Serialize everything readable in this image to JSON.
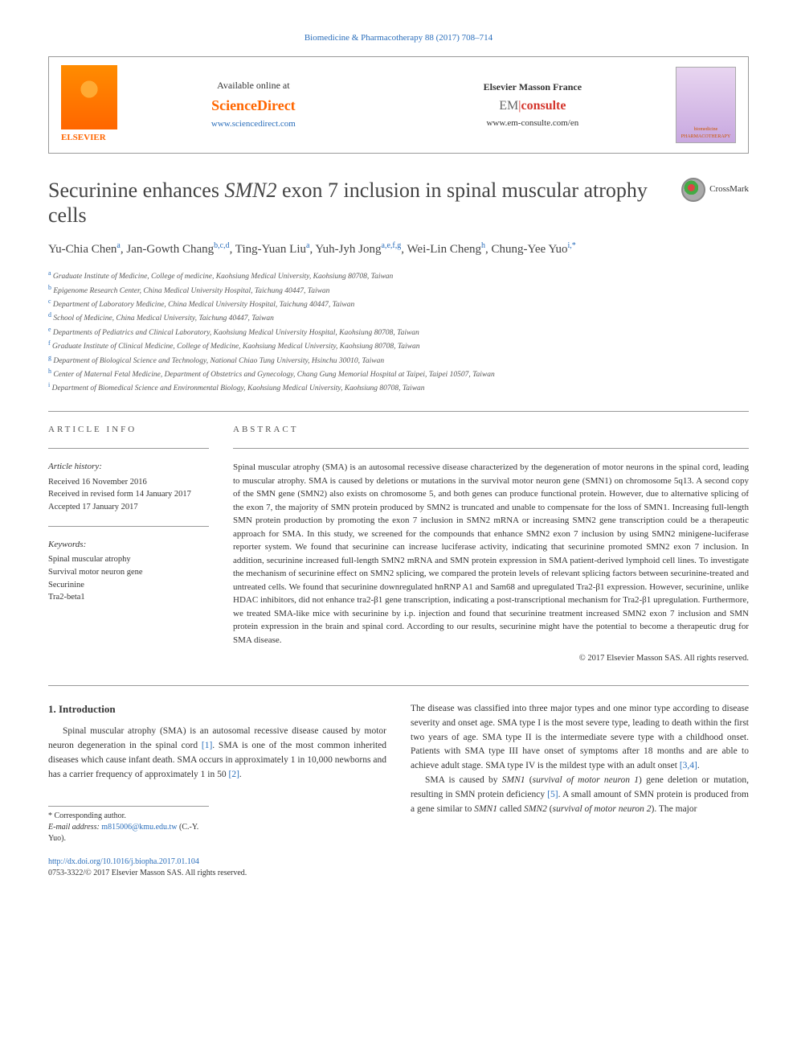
{
  "citation": "Biomedicine & Pharmacotherapy 88 (2017) 708–714",
  "header": {
    "availableText": "Available online at",
    "sdLogo": "ScienceDirect",
    "sdUrl": "www.sciencedirect.com",
    "emTitle": "Elsevier Masson France",
    "emLogoEm": "EM",
    "emLogoConsulte": "consulte",
    "emUrl": "www.em-consulte.com/en",
    "elsevierText": "ELSEVIER",
    "journalCoverTitle": "biomedicine PHARMACOTHERAPY"
  },
  "crossmark": "CrossMark",
  "title": "Securinine enhances SMN2 exon 7 inclusion in spinal muscular atrophy cells",
  "authorsHtml": "Yu-Chia Chen<sup>a</sup>, Jan-Gowth Chang<sup>b,c,d</sup>, Ting-Yuan Liu<sup>a</sup>, Yuh-Jyh Jong<sup>a,e,f,g</sup>, Wei-Lin Cheng<sup>h</sup>, Chung-Yee Yuo<sup>i,*</sup>",
  "affiliations": [
    {
      "sup": "a",
      "text": "Graduate Institute of Medicine, College of medicine, Kaohsiung Medical University, Kaohsiung 80708, Taiwan"
    },
    {
      "sup": "b",
      "text": "Epigenome Research Center, China Medical University Hospital, Taichung 40447, Taiwan"
    },
    {
      "sup": "c",
      "text": "Department of Laboratory Medicine, China Medical University Hospital, Taichung 40447, Taiwan"
    },
    {
      "sup": "d",
      "text": "School of Medicine, China Medical University, Taichung 40447, Taiwan"
    },
    {
      "sup": "e",
      "text": "Departments of Pediatrics and Clinical Laboratory, Kaohsiung Medical University Hospital, Kaohsiung 80708, Taiwan"
    },
    {
      "sup": "f",
      "text": "Graduate Institute of Clinical Medicine, College of Medicine, Kaohsiung Medical University, Kaohsiung 80708, Taiwan"
    },
    {
      "sup": "g",
      "text": "Department of Biological Science and Technology, National Chiao Tung University, Hsinchu 30010, Taiwan"
    },
    {
      "sup": "h",
      "text": "Center of Maternal Fetal Medicine, Department of Obstetrics and Gynecology, Chang Gung Memorial Hospital at Taipei, Taipei 10507, Taiwan"
    },
    {
      "sup": "i",
      "text": "Department of Biomedical Science and Environmental Biology, Kaohsiung Medical University, Kaohsiung 80708, Taiwan"
    }
  ],
  "articleInfo": {
    "heading": "ARTICLE INFO",
    "historyLabel": "Article history:",
    "received": "Received 16 November 2016",
    "revised": "Received in revised form 14 January 2017",
    "accepted": "Accepted 17 January 2017",
    "keywordsLabel": "Keywords:",
    "keywords": [
      "Spinal muscular atrophy",
      "Survival motor neuron gene",
      "Securinine",
      "Tra2-beta1"
    ]
  },
  "abstract": {
    "heading": "ABSTRACT",
    "text": "Spinal muscular atrophy (SMA) is an autosomal recessive disease characterized by the degeneration of motor neurons in the spinal cord, leading to muscular atrophy. SMA is caused by deletions or mutations in the survival motor neuron gene (SMN1) on chromosome 5q13. A second copy of the SMN gene (SMN2) also exists on chromosome 5, and both genes can produce functional protein. However, due to alternative splicing of the exon 7, the majority of SMN protein produced by SMN2 is truncated and unable to compensate for the loss of SMN1. Increasing full-length SMN protein production by promoting the exon 7 inclusion in SMN2 mRNA or increasing SMN2 gene transcription could be a therapeutic approach for SMA. In this study, we screened for the compounds that enhance SMN2 exon 7 inclusion by using SMN2 minigene-luciferase reporter system. We found that securinine can increase luciferase activity, indicating that securinine promoted SMN2 exon 7 inclusion. In addition, securinine increased full-length SMN2 mRNA and SMN protein expression in SMA patient-derived lymphoid cell lines. To investigate the mechanism of securinine effect on SMN2 splicing, we compared the protein levels of relevant splicing factors between securinine-treated and untreated cells. We found that securinine downregulated hnRNP A1 and Sam68 and upregulated Tra2-β1 expression. However, securinine, unlike HDAC inhibitors, did not enhance tra2-β1 gene transcription, indicating a post-transcriptional mechanism for Tra2-β1 upregulation. Furthermore, we treated SMA-like mice with securinine by i.p. injection and found that securinine treatment increased SMN2 exon 7 inclusion and SMN protein expression in the brain and spinal cord. According to our results, securinine might have the potential to become a therapeutic drug for SMA disease.",
    "copyright": "© 2017 Elsevier Masson SAS. All rights reserved."
  },
  "introduction": {
    "heading": "1. Introduction",
    "col1": "Spinal muscular atrophy (SMA) is an autosomal recessive disease caused by motor neuron degeneration in the spinal cord [1]. SMA is one of the most common inherited diseases which cause infant death. SMA occurs in approximately 1 in 10,000 newborns and has a carrier frequency of approximately 1 in 50 [2].",
    "col2p1": "The disease was classified into three major types and one minor type according to disease severity and onset age. SMA type I is the most severe type, leading to death within the first two years of age. SMA type II is the intermediate severe type with a childhood onset. Patients with SMA type III have onset of symptoms after 18 months and are able to achieve adult stage. SMA type IV is the mildest type with an adult onset [3,4].",
    "col2p2": "SMA is caused by SMN1 (survival of motor neuron 1) gene deletion or mutation, resulting in SMN protein deficiency [5]. A small amount of SMN protein is produced from a gene similar to SMN1 called SMN2 (survival of motor neuron 2). The major"
  },
  "footnote": {
    "label": "* Corresponding author.",
    "emailLabel": "E-mail address:",
    "email": "m815006@kmu.edu.tw",
    "emailSuffix": "(C.-Y. Yuo)."
  },
  "footer": {
    "doi": "http://dx.doi.org/10.1016/j.biopha.2017.01.104",
    "issn": "0753-3322/© 2017 Elsevier Masson SAS. All rights reserved."
  },
  "colors": {
    "link": "#2a6ebb",
    "elsevierOrange": "#ff6600",
    "emRed": "#d4352c",
    "textDark": "#333",
    "border": "#999"
  }
}
